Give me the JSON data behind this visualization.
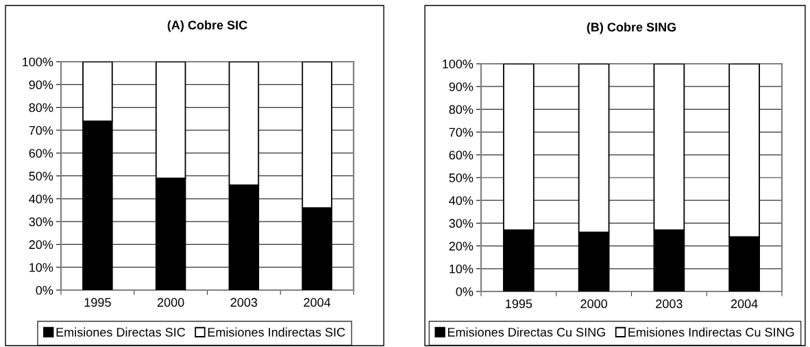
{
  "chart_data": [
    {
      "type": "bar",
      "title": "(A) Cobre SIC",
      "categories": [
        "1995",
        "2000",
        "2003",
        "2004"
      ],
      "stacked": true,
      "series": [
        {
          "name": "Emisiones Directas SIC",
          "color": "#000000",
          "values": [
            74,
            49,
            46,
            36
          ]
        },
        {
          "name": "Emisiones Indirectas SIC",
          "color": "#ffffff",
          "values": [
            26,
            51,
            54,
            64
          ]
        }
      ],
      "ylim": [
        0,
        100
      ],
      "yticks": [
        {
          "value": 0,
          "label": "0%"
        },
        {
          "value": 10,
          "label": "10%"
        },
        {
          "value": 20,
          "label": "20%"
        },
        {
          "value": 30,
          "label": "30%"
        },
        {
          "value": 40,
          "label": "40%"
        },
        {
          "value": 50,
          "label": "50%"
        },
        {
          "value": 60,
          "label": "60%"
        },
        {
          "value": 70,
          "label": "70%"
        },
        {
          "value": 80,
          "label": "80%"
        },
        {
          "value": 90,
          "label": "90%"
        },
        {
          "value": 100,
          "label": "100%"
        }
      ],
      "grid": "y",
      "legend": "bottom"
    },
    {
      "type": "bar",
      "title": "(B) Cobre SING",
      "categories": [
        "1995",
        "2000",
        "2003",
        "2004"
      ],
      "stacked": true,
      "series": [
        {
          "name": "Emisiones Directas Cu SING",
          "color": "#000000",
          "values": [
            27,
            26,
            27,
            24
          ]
        },
        {
          "name": "Emisiones Indirectas Cu SING",
          "color": "#ffffff",
          "values": [
            73,
            74,
            73,
            76
          ]
        }
      ],
      "ylim": [
        0,
        100
      ],
      "yticks": [
        {
          "value": 0,
          "label": "0%"
        },
        {
          "value": 10,
          "label": "10%"
        },
        {
          "value": 20,
          "label": "20%"
        },
        {
          "value": 30,
          "label": "30%"
        },
        {
          "value": 40,
          "label": "40%"
        },
        {
          "value": 50,
          "label": "50%"
        },
        {
          "value": 60,
          "label": "60%"
        },
        {
          "value": 70,
          "label": "70%"
        },
        {
          "value": 80,
          "label": "80%"
        },
        {
          "value": 90,
          "label": "90%"
        },
        {
          "value": 100,
          "label": "100%"
        }
      ],
      "grid": "y",
      "legend": "bottom"
    }
  ]
}
